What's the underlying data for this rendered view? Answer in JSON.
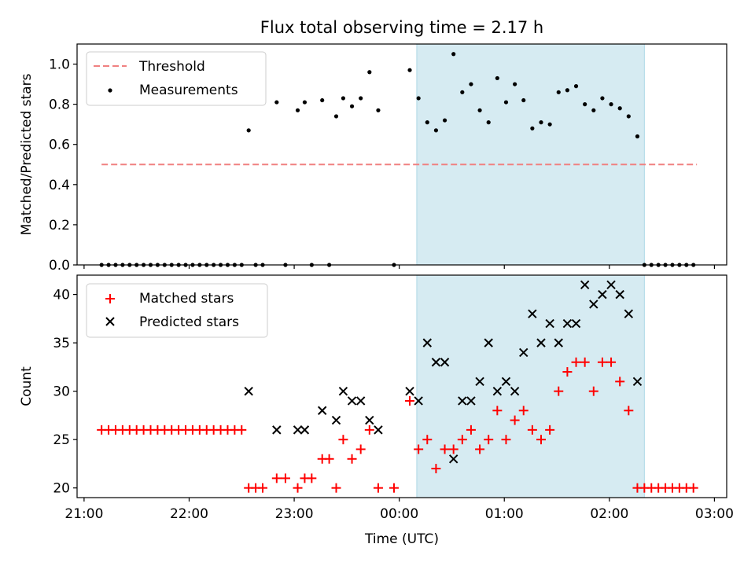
{
  "chart_data": [
    {
      "type": "scatter",
      "title": "Flux total observing time = 2.17 h",
      "ylabel": "Matched/Predicted stars",
      "xlabel": "",
      "ylim": [
        0,
        1.1
      ],
      "xlim": [
        "20:56",
        "03:07"
      ],
      "yticks": [
        "0.0",
        "0.2",
        "0.4",
        "0.6",
        "0.8",
        "1.0"
      ],
      "highlight_span": [
        "00:10",
        "02:20"
      ],
      "highlight_color": "#add8e6",
      "legend_position": "upper-left",
      "threshold": {
        "name": "Threshold",
        "y": 0.5,
        "x_start": "21:10",
        "x_end": "02:50",
        "color": "#f08080",
        "style": "dashed"
      },
      "series": [
        {
          "name": "Measurements",
          "color": "#000000",
          "marker": "dot",
          "points": [
            [
              "21:10",
              0
            ],
            [
              "21:14",
              0
            ],
            [
              "21:18",
              0
            ],
            [
              "21:22",
              0
            ],
            [
              "21:26",
              0
            ],
            [
              "21:30",
              0
            ],
            [
              "21:34",
              0
            ],
            [
              "21:38",
              0
            ],
            [
              "21:42",
              0
            ],
            [
              "21:46",
              0
            ],
            [
              "21:50",
              0
            ],
            [
              "21:54",
              0
            ],
            [
              "21:58",
              0
            ],
            [
              "22:02",
              0
            ],
            [
              "22:06",
              0
            ],
            [
              "22:10",
              0
            ],
            [
              "22:14",
              0
            ],
            [
              "22:18",
              0
            ],
            [
              "22:22",
              0
            ],
            [
              "22:26",
              0
            ],
            [
              "22:30",
              0
            ],
            [
              "22:34",
              0.67
            ],
            [
              "22:38",
              0
            ],
            [
              "22:42",
              0
            ],
            [
              "22:50",
              0.81
            ],
            [
              "22:55",
              0
            ],
            [
              "23:02",
              0.77
            ],
            [
              "23:06",
              0.81
            ],
            [
              "23:10",
              0
            ],
            [
              "23:16",
              0.82
            ],
            [
              "23:20",
              0
            ],
            [
              "23:24",
              0.74
            ],
            [
              "23:28",
              0.83
            ],
            [
              "23:33",
              0.79
            ],
            [
              "23:38",
              0.83
            ],
            [
              "23:43",
              0.96
            ],
            [
              "23:48",
              0.77
            ],
            [
              "23:57",
              0
            ],
            [
              "00:06",
              0.97
            ],
            [
              "00:11",
              0.83
            ],
            [
              "00:16",
              0.71
            ],
            [
              "00:21",
              0.67
            ],
            [
              "00:26",
              0.72
            ],
            [
              "00:31",
              1.05
            ],
            [
              "00:36",
              0.86
            ],
            [
              "00:41",
              0.9
            ],
            [
              "00:46",
              0.77
            ],
            [
              "00:51",
              0.71
            ],
            [
              "00:56",
              0.93
            ],
            [
              "01:01",
              0.81
            ],
            [
              "01:06",
              0.9
            ],
            [
              "01:11",
              0.82
            ],
            [
              "01:16",
              0.68
            ],
            [
              "01:21",
              0.71
            ],
            [
              "01:26",
              0.7
            ],
            [
              "01:31",
              0.86
            ],
            [
              "01:36",
              0.87
            ],
            [
              "01:41",
              0.89
            ],
            [
              "01:46",
              0.8
            ],
            [
              "01:51",
              0.77
            ],
            [
              "01:56",
              0.83
            ],
            [
              "02:01",
              0.8
            ],
            [
              "02:06",
              0.78
            ],
            [
              "02:11",
              0.74
            ],
            [
              "02:16",
              0.64
            ],
            [
              "02:20",
              0
            ],
            [
              "02:24",
              0
            ],
            [
              "02:28",
              0
            ],
            [
              "02:32",
              0
            ],
            [
              "02:36",
              0
            ],
            [
              "02:40",
              0
            ],
            [
              "02:44",
              0
            ],
            [
              "02:48",
              0
            ]
          ]
        }
      ]
    },
    {
      "type": "scatter",
      "title": "",
      "ylabel": "Count",
      "xlabel": "Time (UTC)",
      "ylim": [
        19,
        42
      ],
      "xlim": [
        "20:56",
        "03:07"
      ],
      "yticks": [
        "20",
        "25",
        "30",
        "35",
        "40"
      ],
      "xticks": [
        "21:00",
        "22:00",
        "23:00",
        "00:00",
        "01:00",
        "02:00",
        "03:00"
      ],
      "highlight_span": [
        "00:10",
        "02:20"
      ],
      "highlight_color": "#add8e6",
      "legend_position": "upper-left",
      "series": [
        {
          "name": "Matched stars",
          "color": "#ff0000",
          "marker": "plus",
          "points": [
            [
              "21:10",
              26
            ],
            [
              "21:14",
              26
            ],
            [
              "21:18",
              26
            ],
            [
              "21:22",
              26
            ],
            [
              "21:26",
              26
            ],
            [
              "21:30",
              26
            ],
            [
              "21:34",
              26
            ],
            [
              "21:38",
              26
            ],
            [
              "21:42",
              26
            ],
            [
              "21:46",
              26
            ],
            [
              "21:50",
              26
            ],
            [
              "21:54",
              26
            ],
            [
              "21:58",
              26
            ],
            [
              "22:02",
              26
            ],
            [
              "22:06",
              26
            ],
            [
              "22:10",
              26
            ],
            [
              "22:14",
              26
            ],
            [
              "22:18",
              26
            ],
            [
              "22:22",
              26
            ],
            [
              "22:26",
              26
            ],
            [
              "22:30",
              26
            ],
            [
              "22:34",
              20
            ],
            [
              "22:38",
              20
            ],
            [
              "22:42",
              20
            ],
            [
              "22:50",
              21
            ],
            [
              "22:55",
              21
            ],
            [
              "23:02",
              20
            ],
            [
              "23:06",
              21
            ],
            [
              "23:10",
              21
            ],
            [
              "23:16",
              23
            ],
            [
              "23:20",
              23
            ],
            [
              "23:24",
              20
            ],
            [
              "23:28",
              25
            ],
            [
              "23:33",
              23
            ],
            [
              "23:38",
              24
            ],
            [
              "23:43",
              26
            ],
            [
              "23:48",
              20
            ],
            [
              "23:57",
              20
            ],
            [
              "00:06",
              29
            ],
            [
              "00:11",
              24
            ],
            [
              "00:16",
              25
            ],
            [
              "00:21",
              22
            ],
            [
              "00:26",
              24
            ],
            [
              "00:31",
              24
            ],
            [
              "00:36",
              25
            ],
            [
              "00:41",
              26
            ],
            [
              "00:46",
              24
            ],
            [
              "00:51",
              25
            ],
            [
              "00:56",
              28
            ],
            [
              "01:01",
              25
            ],
            [
              "01:06",
              27
            ],
            [
              "01:11",
              28
            ],
            [
              "01:16",
              26
            ],
            [
              "01:21",
              25
            ],
            [
              "01:26",
              26
            ],
            [
              "01:31",
              30
            ],
            [
              "01:36",
              32
            ],
            [
              "01:41",
              33
            ],
            [
              "01:46",
              33
            ],
            [
              "01:51",
              30
            ],
            [
              "01:56",
              33
            ],
            [
              "02:01",
              33
            ],
            [
              "02:06",
              31
            ],
            [
              "02:11",
              28
            ],
            [
              "02:16",
              20
            ],
            [
              "02:20",
              20
            ],
            [
              "02:24",
              20
            ],
            [
              "02:28",
              20
            ],
            [
              "02:32",
              20
            ],
            [
              "02:36",
              20
            ],
            [
              "02:40",
              20
            ],
            [
              "02:44",
              20
            ],
            [
              "02:48",
              20
            ]
          ]
        },
        {
          "name": "Predicted stars",
          "color": "#000000",
          "marker": "x",
          "points": [
            [
              "22:34",
              30
            ],
            [
              "22:50",
              26
            ],
            [
              "23:02",
              26
            ],
            [
              "23:06",
              26
            ],
            [
              "23:16",
              28
            ],
            [
              "23:24",
              27
            ],
            [
              "23:28",
              30
            ],
            [
              "23:33",
              29
            ],
            [
              "23:38",
              29
            ],
            [
              "23:43",
              27
            ],
            [
              "23:48",
              26
            ],
            [
              "00:06",
              30
            ],
            [
              "00:11",
              29
            ],
            [
              "00:16",
              35
            ],
            [
              "00:21",
              33
            ],
            [
              "00:26",
              33
            ],
            [
              "00:31",
              23
            ],
            [
              "00:36",
              29
            ],
            [
              "00:41",
              29
            ],
            [
              "00:46",
              31
            ],
            [
              "00:51",
              35
            ],
            [
              "00:56",
              30
            ],
            [
              "01:01",
              31
            ],
            [
              "01:06",
              30
            ],
            [
              "01:11",
              34
            ],
            [
              "01:16",
              38
            ],
            [
              "01:21",
              35
            ],
            [
              "01:26",
              37
            ],
            [
              "01:31",
              35
            ],
            [
              "01:36",
              37
            ],
            [
              "01:41",
              37
            ],
            [
              "01:46",
              41
            ],
            [
              "01:51",
              39
            ],
            [
              "01:56",
              40
            ],
            [
              "02:01",
              41
            ],
            [
              "02:06",
              40
            ],
            [
              "02:11",
              38
            ],
            [
              "02:16",
              31
            ]
          ]
        }
      ]
    }
  ]
}
